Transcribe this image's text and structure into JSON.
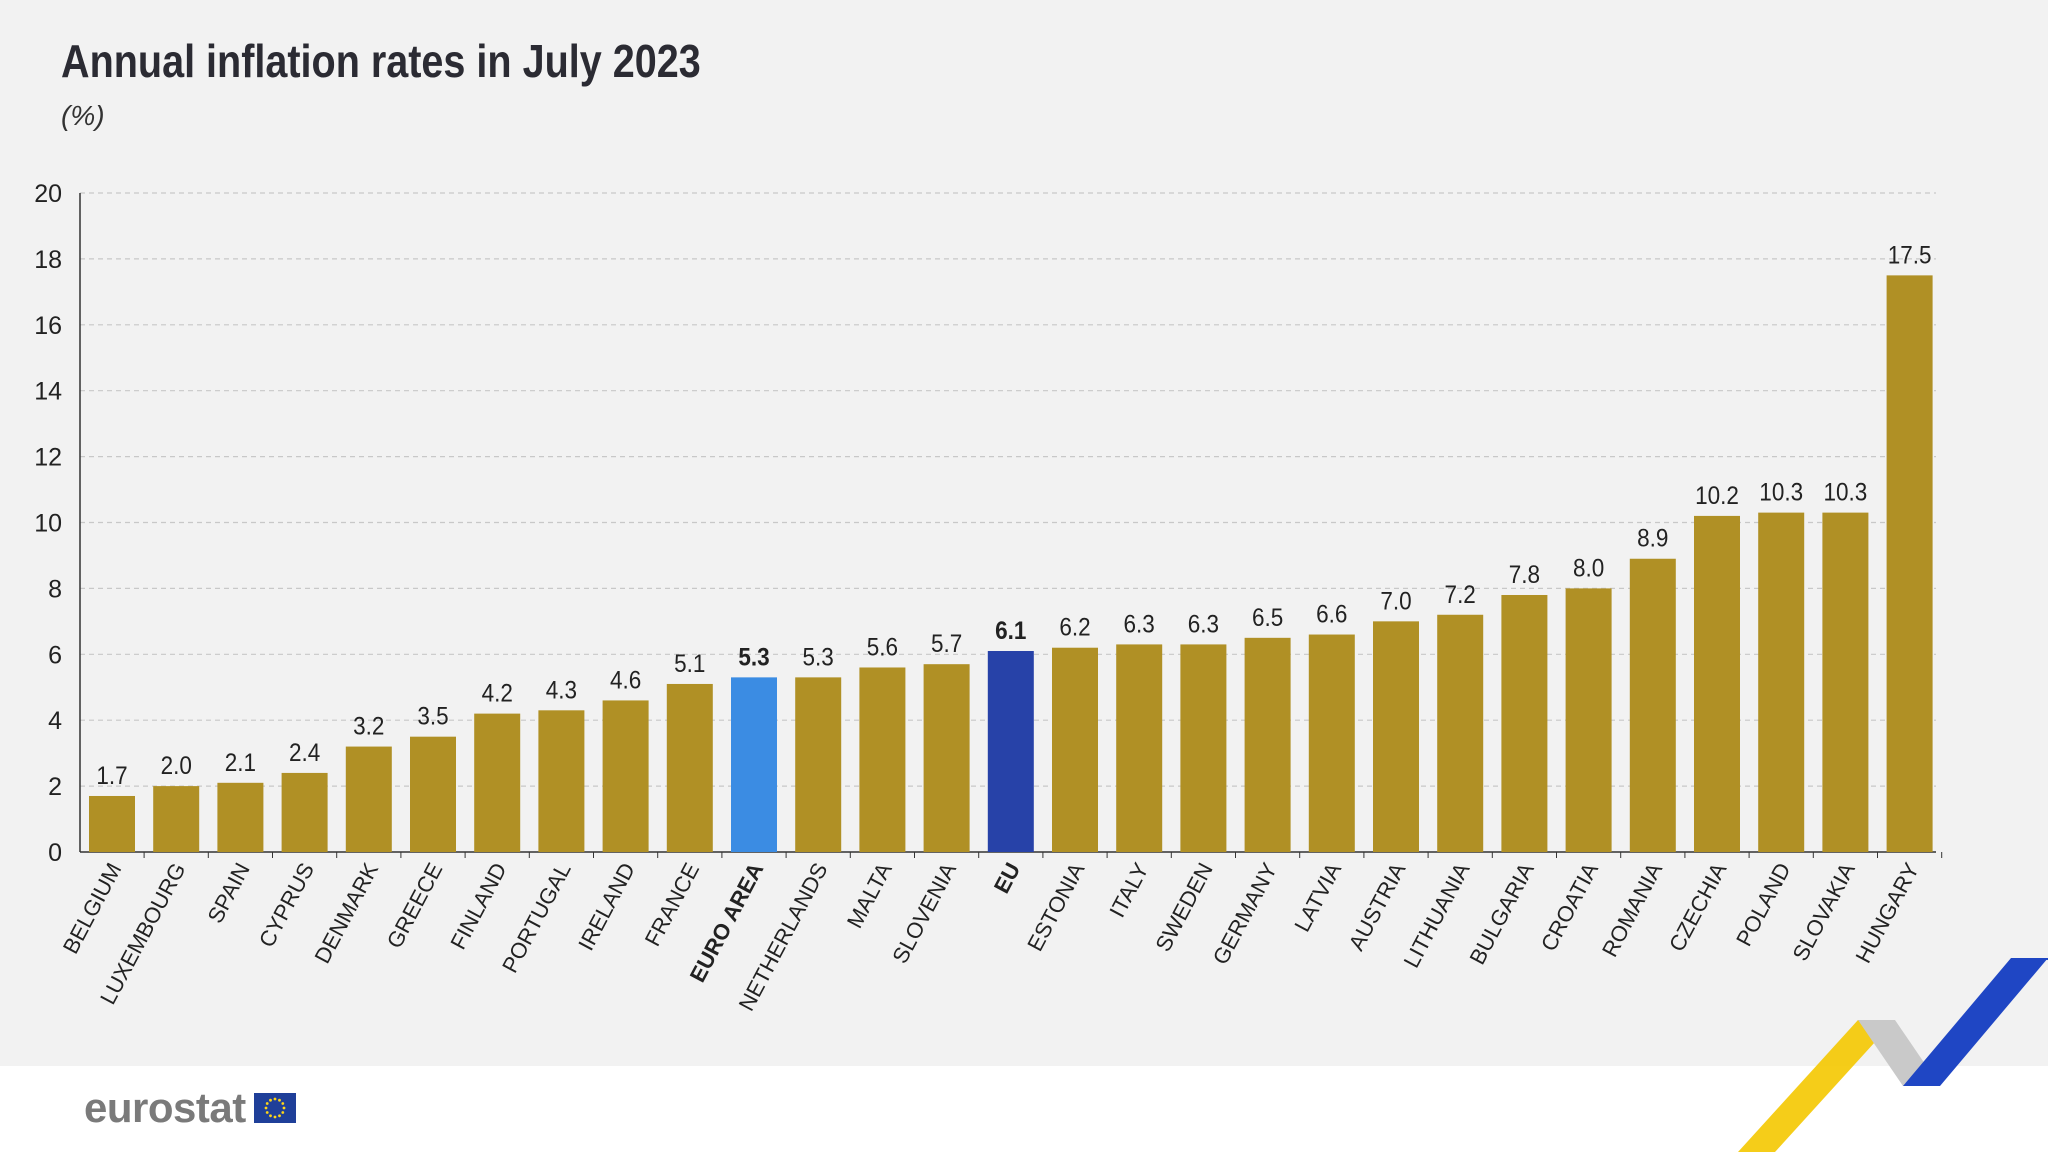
{
  "header": {
    "title": "Annual inflation rates in July 2023",
    "subtitle": "(%)"
  },
  "footer": {
    "logo_text": "eurostat"
  },
  "colors": {
    "default_bar": "#b09025",
    "euro_area_bar": "#3b8ce3",
    "eu_bar": "#2742a8",
    "background": "#f2f2f2"
  },
  "chart_data": {
    "type": "bar",
    "title": "Annual inflation rates in July 2023",
    "subtitle": "(%)",
    "xlabel": "",
    "ylabel": "",
    "ylim": [
      0,
      20
    ],
    "yticks": [
      0,
      2,
      4,
      6,
      8,
      10,
      12,
      14,
      16,
      18,
      20
    ],
    "grid": true,
    "categories": [
      "BELGIUM",
      "LUXEMBOURG",
      "SPAIN",
      "CYPRUS",
      "DENMARK",
      "GREECE",
      "FINLAND",
      "PORTUGAL",
      "IRELAND",
      "FRANCE",
      "EURO AREA",
      "NETHERLANDS",
      "MALTA",
      "SLOVENIA",
      "EU",
      "ESTONIA",
      "ITALY",
      "SWEDEN",
      "GERMANY",
      "LATVIA",
      "AUSTRIA",
      "LITHUANIA",
      "BULGARIA",
      "CROATIA",
      "ROMANIA",
      "CZECHIA",
      "POLAND",
      "SLOVAKIA",
      "HUNGARY"
    ],
    "values": [
      1.7,
      2.0,
      2.1,
      2.4,
      3.2,
      3.5,
      4.2,
      4.3,
      4.6,
      5.1,
      5.3,
      5.3,
      5.6,
      5.7,
      6.1,
      6.2,
      6.3,
      6.3,
      6.5,
      6.6,
      7.0,
      7.2,
      7.8,
      8.0,
      8.9,
      10.2,
      10.3,
      10.3,
      17.5
    ],
    "value_labels": [
      "1.7",
      "2.0",
      "2.1",
      "2.4",
      "3.2",
      "3.5",
      "4.2",
      "4.3",
      "4.6",
      "5.1",
      "5.3",
      "5.3",
      "5.6",
      "5.7",
      "6.1",
      "6.2",
      "6.3",
      "6.3",
      "6.5",
      "6.6",
      "7.0",
      "7.2",
      "7.8",
      "8.0",
      "8.9",
      "10.2",
      "10.3",
      "10.3",
      "17.5"
    ],
    "highlight": {
      "EURO AREA": "#3b8ce3",
      "EU": "#2742a8"
    },
    "bold_categories": [
      "EURO AREA",
      "EU"
    ]
  }
}
